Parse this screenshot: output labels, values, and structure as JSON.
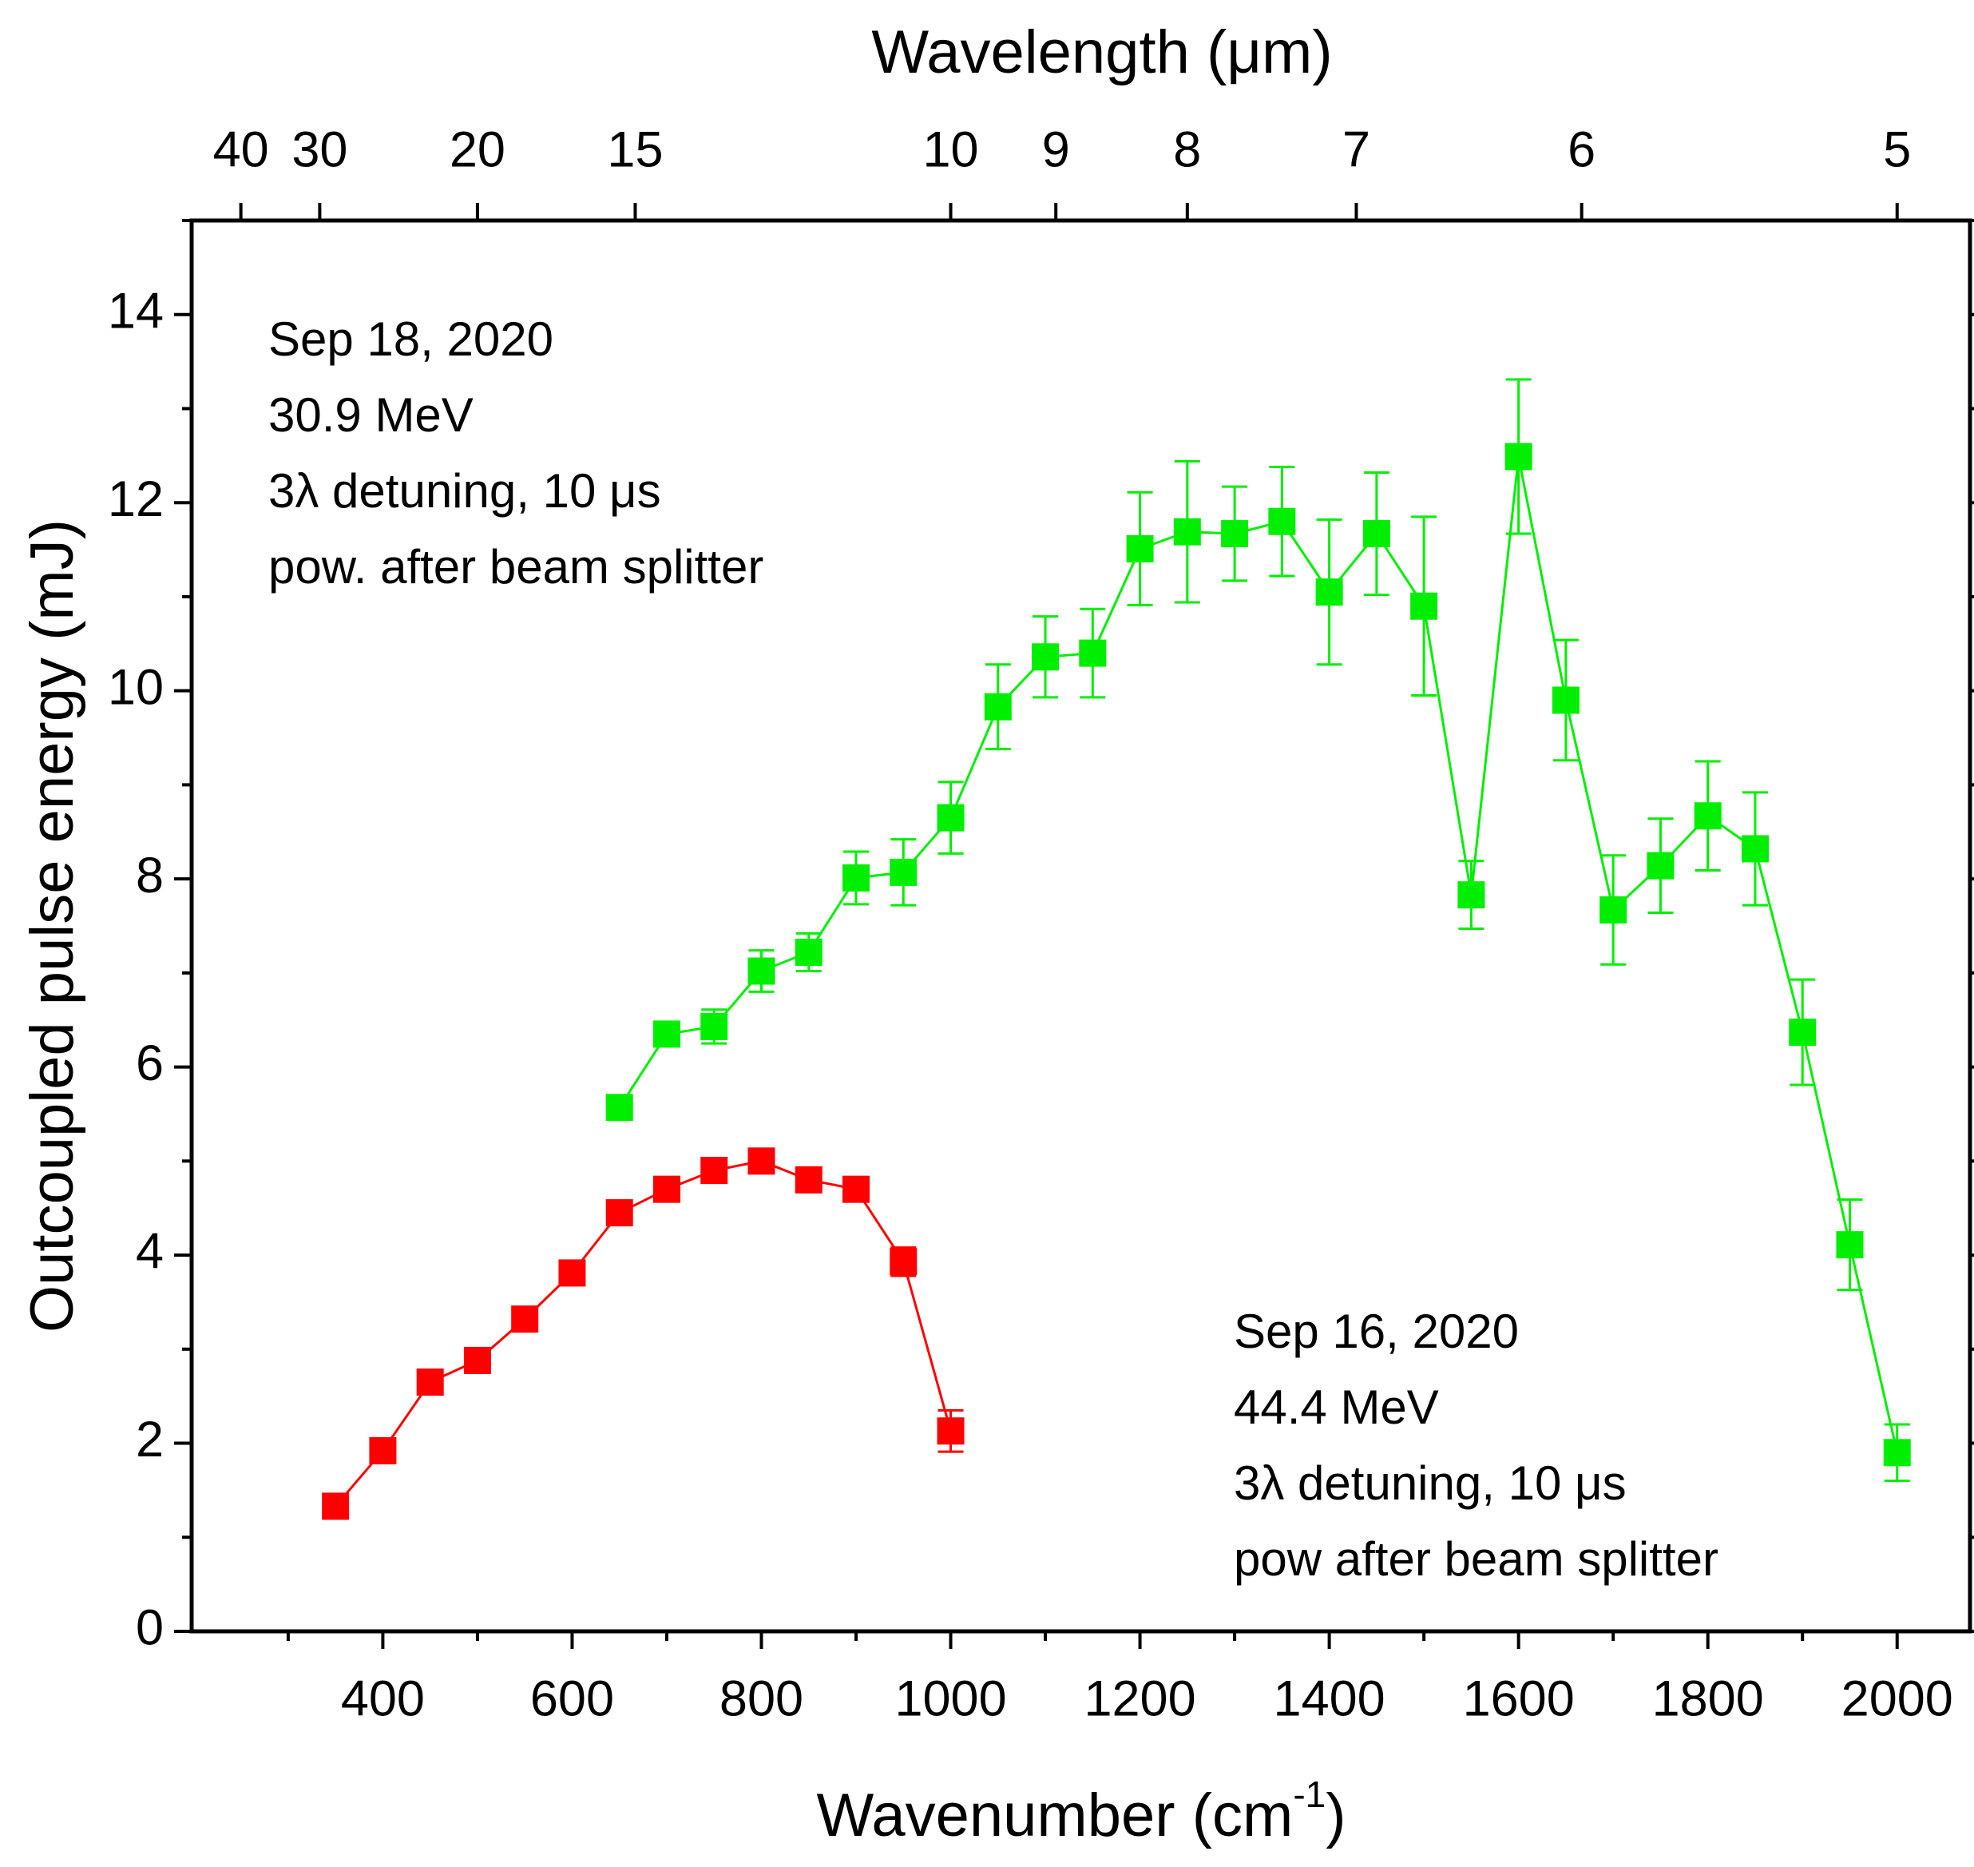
{
  "chart_data": {
    "type": "line",
    "x_label": {
      "text": "Wavenumber (cm",
      "sup": "-1",
      "tail": ")"
    },
    "y_label": "Outcoupled pulse energy (mJ)",
    "x2_label": "Wavelength (μm)",
    "xlim": [
      198,
      2077
    ],
    "ylim": [
      0,
      15
    ],
    "xticks": [
      400,
      600,
      800,
      1000,
      1200,
      1400,
      1600,
      1800,
      2000
    ],
    "xminorticks": [
      300,
      500,
      700,
      900,
      1100,
      1300,
      1500,
      1700,
      1900
    ],
    "yticks": [
      0,
      2,
      4,
      6,
      8,
      10,
      12,
      14
    ],
    "yminorticks": [
      1,
      3,
      5,
      7,
      9,
      11,
      13,
      15
    ],
    "x2ticks": [
      {
        "value": 250,
        "label": "40"
      },
      {
        "value": 333.33,
        "label": "30"
      },
      {
        "value": 500,
        "label": "20"
      },
      {
        "value": 666.67,
        "label": "15"
      },
      {
        "value": 1000,
        "label": "10"
      },
      {
        "value": 1111.11,
        "label": "9"
      },
      {
        "value": 1250,
        "label": "8"
      },
      {
        "value": 1428.57,
        "label": "7"
      },
      {
        "value": 1666.67,
        "label": "6"
      },
      {
        "value": 2000,
        "label": "5"
      }
    ],
    "series": [
      {
        "color": "#ff0000",
        "x": [
          350,
          400,
          450,
          500,
          550,
          600,
          650,
          700,
          750,
          800,
          850,
          900,
          950,
          1000
        ],
        "values": [
          1.33,
          1.92,
          2.65,
          2.88,
          3.32,
          3.81,
          4.45,
          4.7,
          4.9,
          5.0,
          4.8,
          4.7,
          3.93,
          2.13
        ],
        "errors": [
          0.05,
          0.06,
          0.06,
          0.06,
          0.06,
          0.06,
          0.06,
          0.07,
          0.07,
          0.07,
          0.07,
          0.07,
          0.15,
          0.22
        ]
      },
      {
        "color": "#00ee00",
        "x": [
          650,
          700,
          750,
          800,
          850,
          900,
          950,
          1000,
          1050,
          1100,
          1150,
          1200,
          1250,
          1300,
          1350,
          1400,
          1450,
          1500,
          1550,
          1600,
          1650,
          1700,
          1750,
          1800,
          1850,
          1900,
          1950,
          2000
        ],
        "values": [
          5.57,
          6.35,
          6.43,
          7.02,
          7.22,
          8.01,
          8.07,
          8.65,
          9.83,
          10.36,
          10.4,
          11.51,
          11.69,
          11.67,
          11.8,
          11.05,
          11.67,
          10.9,
          7.83,
          12.49,
          9.9,
          7.67,
          8.14,
          8.67,
          8.32,
          6.37,
          4.11,
          1.9
        ],
        "errors": [
          0.05,
          0.1,
          0.18,
          0.22,
          0.2,
          0.28,
          0.35,
          0.38,
          0.45,
          0.43,
          0.47,
          0.6,
          0.75,
          0.5,
          0.58,
          0.77,
          0.65,
          0.95,
          0.36,
          0.82,
          0.64,
          0.58,
          0.5,
          0.58,
          0.6,
          0.56,
          0.48,
          0.3
        ]
      }
    ],
    "annotations": [
      {
        "color": "#ff0000",
        "lines": [
          "Sep 18, 2020",
          "30.9 MeV",
          "3λ detuning, 10 μs",
          "pow. after beam splitter"
        ]
      },
      {
        "color": "#00ee00",
        "lines": [
          "Sep 16, 2020",
          "44.4 MeV",
          "3λ detuning, 10 μs",
          "pow after beam splitter"
        ]
      }
    ]
  }
}
